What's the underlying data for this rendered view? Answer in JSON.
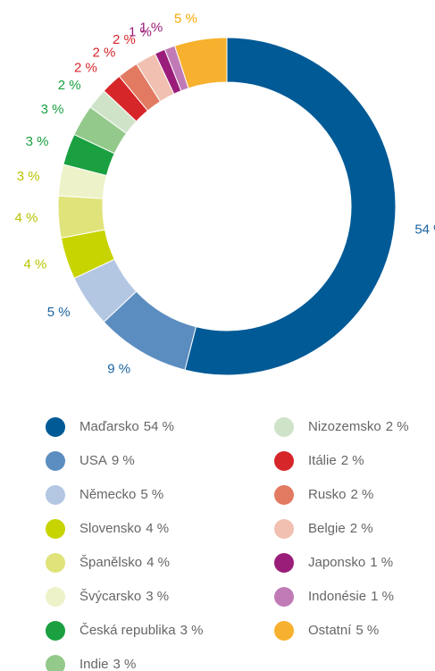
{
  "chart_data": {
    "type": "donut",
    "categories": [
      "Maďarsko",
      "USA",
      "Německo",
      "Slovensko",
      "Španělsko",
      "Švýcarsko",
      "Česká republika",
      "Indie",
      "Nizozemsko",
      "Itálie",
      "Rusko",
      "Belgie",
      "Japonsko",
      "Indonésie",
      "Ostatní"
    ],
    "values": [
      54,
      9,
      5,
      4,
      4,
      3,
      3,
      3,
      2,
      2,
      2,
      2,
      1,
      1,
      5
    ],
    "value_labels": [
      "54 %",
      "9 %",
      "5 %",
      "4 %",
      "4 %",
      "3 %",
      "3 %",
      "3 %",
      "2 %",
      "2 %",
      "2 %",
      "2 %",
      "1 %",
      "1 %",
      "5 %"
    ],
    "colors": [
      "#005a96",
      "#5b8dc0",
      "#b3c7e3",
      "#c8d400",
      "#e0e37a",
      "#eef2c8",
      "#1aa040",
      "#93c98a",
      "#cfe3c8",
      "#d7262a",
      "#e27a62",
      "#f1c0b0",
      "#9b1d7a",
      "#c07bb6",
      "#f7b12e"
    ],
    "label_colors": [
      "#1b63a0",
      "#1b63a0",
      "#1b63a0",
      "#b8c400",
      "#b8c400",
      "#b8c400",
      "#1aa040",
      "#1aa040",
      "#1aa040",
      "#d7262a",
      "#d7262a",
      "#d7262a",
      "#9b1d7a",
      "#9b1d7a",
      "#f7a800"
    ]
  }
}
